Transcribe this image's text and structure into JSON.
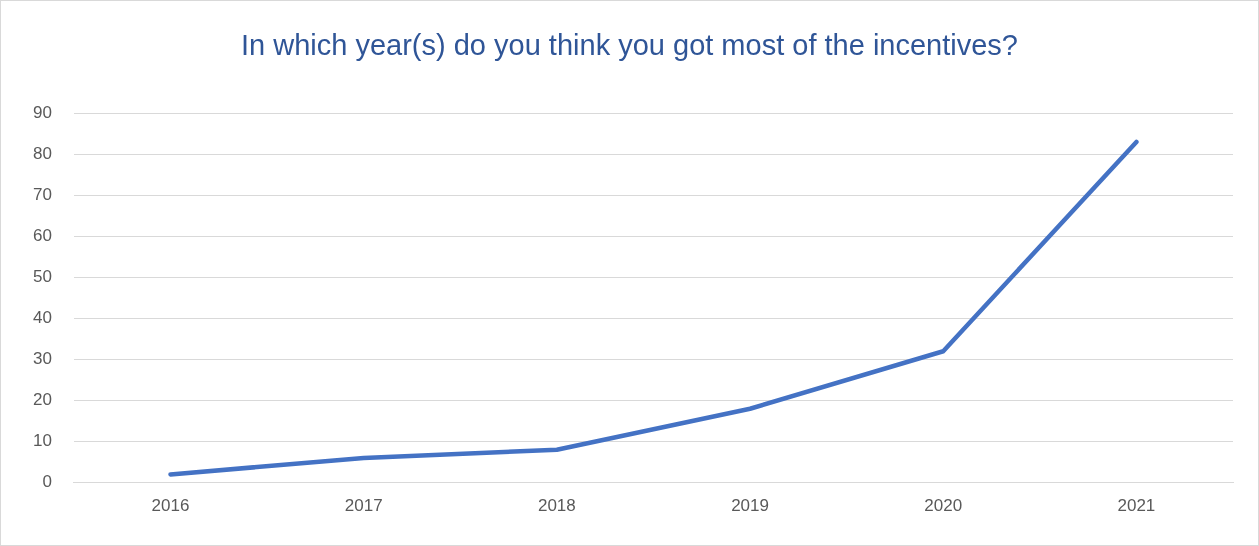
{
  "chart_data": {
    "type": "line",
    "title": "In which year(s) do you think you got most of the incentives?",
    "categories": [
      "2016",
      "2017",
      "2018",
      "2019",
      "2020",
      "2021"
    ],
    "series": [
      {
        "color": "#4472c4",
        "values": [
          2,
          6,
          8,
          18,
          32,
          83
        ]
      }
    ],
    "ylim": [
      0,
      90
    ],
    "yticks": [
      0,
      10,
      20,
      30,
      40,
      50,
      60,
      70,
      80,
      90
    ],
    "grid": "y",
    "legend": false,
    "marker": "none",
    "line_style": "solid"
  }
}
